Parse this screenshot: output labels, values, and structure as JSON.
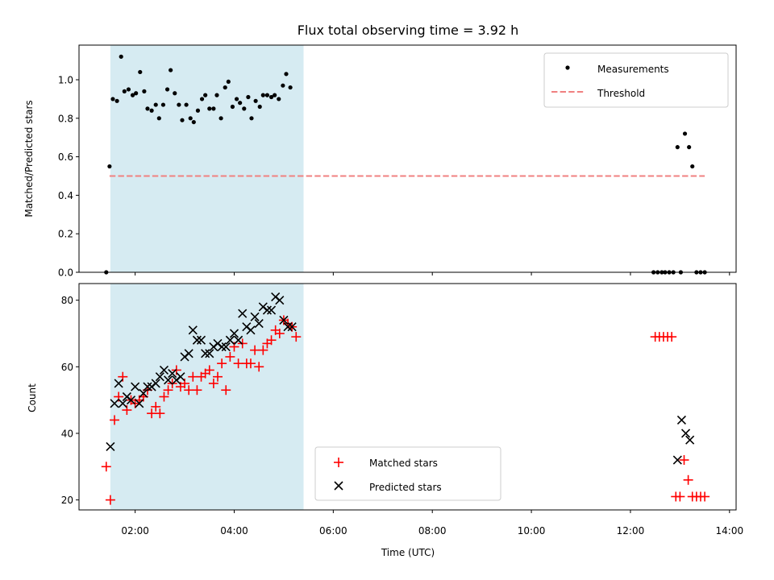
{
  "chart_data": [
    {
      "type": "scatter",
      "title": "Flux total observing time = 3.92 h",
      "xlabel": "",
      "ylabel": "Matched/Predicted stars",
      "xlim": [
        "00:52",
        "14:08"
      ],
      "ylim": [
        0,
        1.18
      ],
      "yticks": [
        "0.0",
        "0.2",
        "0.4",
        "0.6",
        "0.8",
        "1.0"
      ],
      "ytick_values": [
        0,
        0.2,
        0.4,
        0.6,
        0.8,
        1.0
      ],
      "legend_position": "top-right",
      "legend": [
        "Measurements",
        "Threshold"
      ],
      "shaded_span": [
        "01:30",
        "05:24"
      ],
      "threshold": {
        "value": 0.5,
        "x": [
          "01:29",
          "13:30"
        ],
        "color": "#f08080"
      },
      "series": [
        {
          "name": "Measurements",
          "color": "#000000",
          "points": [
            [
              "01:25",
              0.0
            ],
            [
              "01:29",
              0.55
            ],
            [
              "01:33",
              0.9
            ],
            [
              "01:38",
              0.89
            ],
            [
              "01:43",
              1.12
            ],
            [
              "01:47",
              0.94
            ],
            [
              "01:52",
              0.95
            ],
            [
              "01:57",
              0.92
            ],
            [
              "02:01",
              0.93
            ],
            [
              "02:06",
              1.04
            ],
            [
              "02:11",
              0.94
            ],
            [
              "02:15",
              0.85
            ],
            [
              "02:20",
              0.84
            ],
            [
              "02:25",
              0.87
            ],
            [
              "02:29",
              0.8
            ],
            [
              "02:34",
              0.87
            ],
            [
              "02:39",
              0.95
            ],
            [
              "02:43",
              1.05
            ],
            [
              "02:48",
              0.93
            ],
            [
              "02:53",
              0.87
            ],
            [
              "02:57",
              0.79
            ],
            [
              "03:02",
              0.87
            ],
            [
              "03:07",
              0.8
            ],
            [
              "03:11",
              0.78
            ],
            [
              "03:16",
              0.84
            ],
            [
              "03:21",
              0.9
            ],
            [
              "03:25",
              0.92
            ],
            [
              "03:30",
              0.85
            ],
            [
              "03:35",
              0.85
            ],
            [
              "03:39",
              0.92
            ],
            [
              "03:44",
              0.8
            ],
            [
              "03:49",
              0.96
            ],
            [
              "03:53",
              0.99
            ],
            [
              "03:58",
              0.86
            ],
            [
              "04:03",
              0.9
            ],
            [
              "04:07",
              0.88
            ],
            [
              "04:12",
              0.85
            ],
            [
              "04:17",
              0.91
            ],
            [
              "04:21",
              0.8
            ],
            [
              "04:26",
              0.89
            ],
            [
              "04:31",
              0.86
            ],
            [
              "04:35",
              0.92
            ],
            [
              "04:40",
              0.92
            ],
            [
              "04:45",
              0.91
            ],
            [
              "04:49",
              0.92
            ],
            [
              "04:54",
              0.9
            ],
            [
              "04:59",
              0.97
            ],
            [
              "05:03",
              1.03
            ],
            [
              "05:08",
              0.96
            ],
            [
              "12:28",
              0.0
            ],
            [
              "12:33",
              0.0
            ],
            [
              "12:38",
              0.0
            ],
            [
              "12:42",
              0.0
            ],
            [
              "12:47",
              0.0
            ],
            [
              "12:52",
              0.0
            ],
            [
              "12:57",
              0.65
            ],
            [
              "13:01",
              0.0
            ],
            [
              "13:06",
              0.72
            ],
            [
              "13:11",
              0.65
            ],
            [
              "13:15",
              0.55
            ],
            [
              "13:20",
              0.0
            ],
            [
              "13:25",
              0.0
            ],
            [
              "13:30",
              0.0
            ]
          ]
        }
      ]
    },
    {
      "type": "scatter",
      "title": "",
      "xlabel": "Time (UTC)",
      "ylabel": "Count",
      "xlim": [
        "00:52",
        "14:08"
      ],
      "ylim": [
        17,
        85
      ],
      "xticks": [
        "02:00",
        "04:00",
        "06:00",
        "08:00",
        "10:00",
        "12:00",
        "14:00"
      ],
      "yticks": [
        "20",
        "40",
        "60",
        "80"
      ],
      "ytick_values": [
        20,
        40,
        60,
        80
      ],
      "legend_position": "lower-center",
      "legend": [
        "Matched stars",
        "Predicted stars"
      ],
      "shaded_span": [
        "01:30",
        "05:24"
      ],
      "series": [
        {
          "name": "Matched stars",
          "marker": "plus",
          "color": "#ff0000",
          "points": [
            [
              "01:25",
              30
            ],
            [
              "01:30",
              20
            ],
            [
              "01:35",
              44
            ],
            [
              "01:40",
              51
            ],
            [
              "01:45",
              57
            ],
            [
              "01:50",
              47
            ],
            [
              "01:55",
              50
            ],
            [
              "02:00",
              49
            ],
            [
              "02:05",
              50
            ],
            [
              "02:10",
              51
            ],
            [
              "02:15",
              53
            ],
            [
              "02:20",
              46
            ],
            [
              "02:25",
              48
            ],
            [
              "02:30",
              46
            ],
            [
              "02:35",
              51
            ],
            [
              "02:40",
              53
            ],
            [
              "02:45",
              55
            ],
            [
              "02:50",
              59
            ],
            [
              "02:55",
              54
            ],
            [
              "03:00",
              55
            ],
            [
              "03:05",
              53
            ],
            [
              "03:10",
              57
            ],
            [
              "03:15",
              53
            ],
            [
              "03:20",
              57
            ],
            [
              "03:25",
              58
            ],
            [
              "03:30",
              59
            ],
            [
              "03:35",
              55
            ],
            [
              "03:40",
              57
            ],
            [
              "03:45",
              61
            ],
            [
              "03:50",
              53
            ],
            [
              "03:55",
              63
            ],
            [
              "04:00",
              66
            ],
            [
              "04:05",
              61
            ],
            [
              "04:10",
              67
            ],
            [
              "04:15",
              61
            ],
            [
              "04:20",
              61
            ],
            [
              "04:25",
              65
            ],
            [
              "04:30",
              60
            ],
            [
              "04:35",
              65
            ],
            [
              "04:40",
              67
            ],
            [
              "04:45",
              68
            ],
            [
              "04:50",
              71
            ],
            [
              "04:55",
              70
            ],
            [
              "05:00",
              74
            ],
            [
              "05:05",
              73
            ],
            [
              "05:10",
              72
            ],
            [
              "05:15",
              69
            ],
            [
              "12:30",
              69
            ],
            [
              "12:35",
              69
            ],
            [
              "12:40",
              69
            ],
            [
              "12:45",
              69
            ],
            [
              "12:50",
              69
            ],
            [
              "12:55",
              21
            ],
            [
              "13:00",
              21
            ],
            [
              "13:05",
              32
            ],
            [
              "13:10",
              26
            ],
            [
              "13:15",
              21
            ],
            [
              "13:20",
              21
            ],
            [
              "13:25",
              21
            ],
            [
              "13:30",
              21
            ]
          ]
        },
        {
          "name": "Predicted stars",
          "marker": "x",
          "color": "#000000",
          "points": [
            [
              "01:30",
              36
            ],
            [
              "01:35",
              49
            ],
            [
              "01:40",
              55
            ],
            [
              "01:45",
              49
            ],
            [
              "01:50",
              51
            ],
            [
              "01:55",
              50
            ],
            [
              "02:00",
              54
            ],
            [
              "02:05",
              49
            ],
            [
              "02:10",
              52
            ],
            [
              "02:15",
              54
            ],
            [
              "02:20",
              54
            ],
            [
              "02:25",
              55
            ],
            [
              "02:30",
              57
            ],
            [
              "02:35",
              59
            ],
            [
              "02:40",
              56
            ],
            [
              "02:45",
              58
            ],
            [
              "02:50",
              56
            ],
            [
              "02:55",
              57
            ],
            [
              "03:00",
              63
            ],
            [
              "03:05",
              64
            ],
            [
              "03:10",
              71
            ],
            [
              "03:15",
              68
            ],
            [
              "03:20",
              68
            ],
            [
              "03:25",
              64
            ],
            [
              "03:30",
              64
            ],
            [
              "03:35",
              66
            ],
            [
              "03:40",
              67
            ],
            [
              "03:45",
              66
            ],
            [
              "03:50",
              66
            ],
            [
              "03:55",
              68
            ],
            [
              "04:00",
              70
            ],
            [
              "04:05",
              68
            ],
            [
              "04:10",
              76
            ],
            [
              "04:15",
              72
            ],
            [
              "04:20",
              71
            ],
            [
              "04:25",
              75
            ],
            [
              "04:30",
              73
            ],
            [
              "04:35",
              78
            ],
            [
              "04:40",
              77
            ],
            [
              "04:45",
              77
            ],
            [
              "04:50",
              81
            ],
            [
              "04:55",
              80
            ],
            [
              "05:00",
              74
            ],
            [
              "05:05",
              72
            ],
            [
              "05:10",
              72
            ],
            [
              "12:57",
              32
            ],
            [
              "13:02",
              44
            ],
            [
              "13:07",
              40
            ],
            [
              "13:12",
              38
            ]
          ]
        }
      ]
    }
  ]
}
